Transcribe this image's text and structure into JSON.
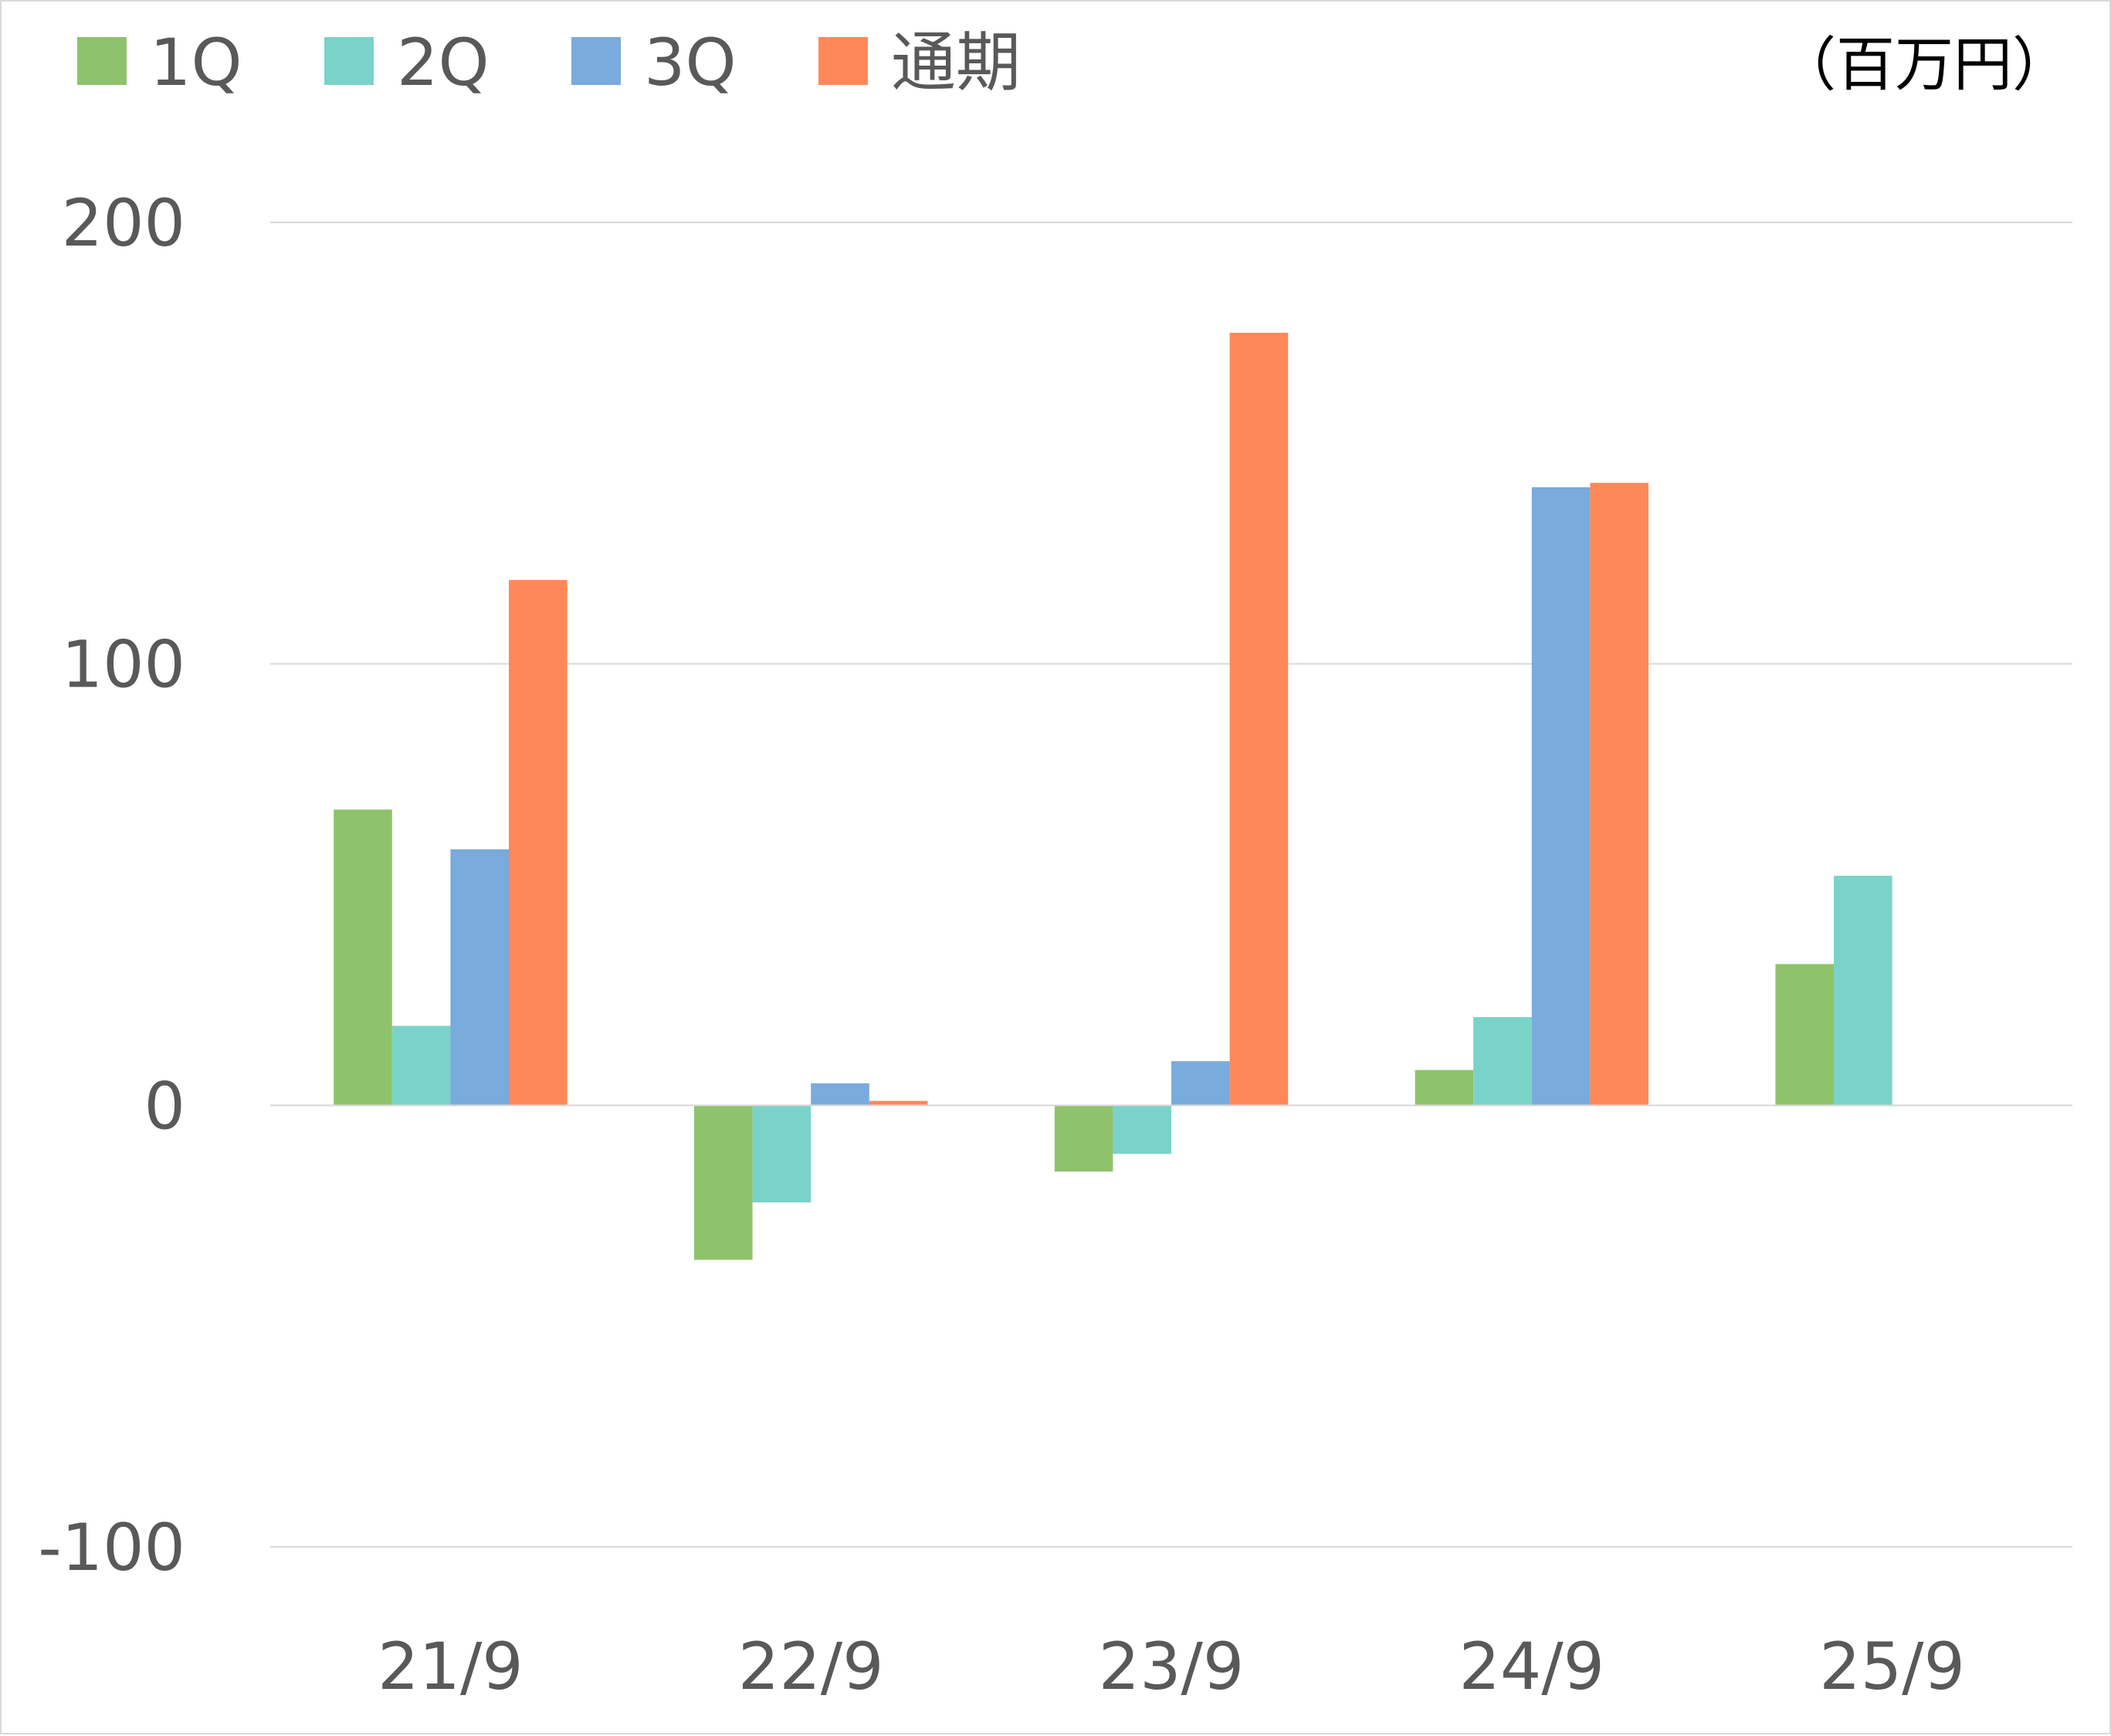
{
  "chart_data": {
    "type": "bar",
    "unit_label": "（百万円）",
    "categories": [
      "21/9",
      "22/9",
      "23/9",
      "24/9",
      "25/9"
    ],
    "series": [
      {
        "name": "1Q",
        "color": "#8fc36b",
        "values": [
          67,
          -35,
          -15,
          8,
          32
        ]
      },
      {
        "name": "2Q",
        "color": "#7ad3c8",
        "values": [
          18,
          -22,
          -11,
          20,
          52
        ]
      },
      {
        "name": "3Q",
        "color": "#79abdc",
        "values": [
          58,
          5,
          10,
          140,
          null
        ]
      },
      {
        "name": "通期",
        "color": "#ff8858",
        "values": [
          119,
          1,
          175,
          141,
          null
        ]
      }
    ],
    "yticks": [
      "200",
      "100",
      "0",
      "-100"
    ],
    "ylim": [
      -100,
      200
    ],
    "grid": true,
    "legend_position": "top-left"
  }
}
